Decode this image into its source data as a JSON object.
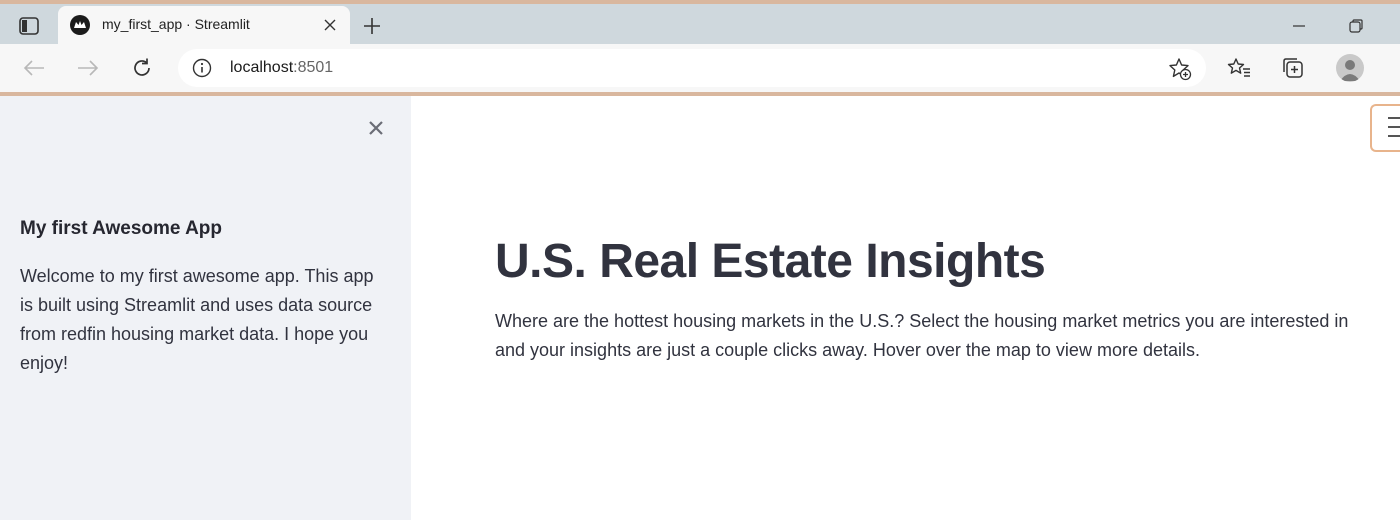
{
  "browser": {
    "tab": {
      "title": "my_first_app · Streamlit"
    },
    "address": {
      "host": "localhost",
      "port": ":8501"
    },
    "icons": [
      "sidebar-toggle-icon",
      "streamlit-favicon",
      "close-icon",
      "plus-icon",
      "minimize-icon",
      "restore-icon",
      "back-arrow-icon",
      "forward-arrow-icon",
      "refresh-icon",
      "info-icon",
      "add-favorite-icon",
      "favorites-icon",
      "collections-icon",
      "profile-icon"
    ]
  },
  "sidebar": {
    "heading": "My first Awesome App",
    "text": "Welcome to my first awesome app. This app is built using Streamlit and uses data source from redfin housing market data. I hope you enjoy!"
  },
  "main": {
    "title": "U.S. Real Estate Insights",
    "description": "Where are the hottest housing markets in the U.S.? Select the housing market metrics you are interested in and your insights are just a couple clicks away. Hover over the map to view more details."
  },
  "colors": {
    "sidebar_bg": "#f0f2f6",
    "text": "#31333f",
    "chrome_tabbar": "#cfd8dd",
    "chrome_accent": "#d9b79e"
  }
}
